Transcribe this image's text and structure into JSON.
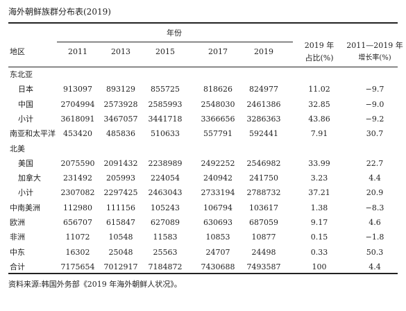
{
  "title": "海外朝鲜族群分布表(2019)",
  "header": {
    "region": "地区",
    "years_label": "年份",
    "years": [
      "2011",
      "2013",
      "2015",
      "2017",
      "2019"
    ],
    "share": [
      "2019 年",
      "占比(%)"
    ],
    "growth": [
      "2011—2019 年",
      "增长率(%)"
    ]
  },
  "rows": [
    {
      "label": "东北亚",
      "rows": [
        {
          "label": "日本",
          "values": [
            "913097",
            "893129",
            "855725",
            "818626",
            "824977",
            "11.02",
            "−9.7"
          ]
        },
        {
          "label": "中国",
          "values": [
            "2704994",
            "2573928",
            "2585993",
            "2548030",
            "2461386",
            "32.85",
            "−9.0"
          ]
        },
        {
          "label": "小计",
          "values": [
            "3618091",
            "3467057",
            "3441718",
            "3366656",
            "3286363",
            "43.86",
            "−9.2"
          ]
        }
      ]
    },
    {
      "label": "南亚和太平洋",
      "values": [
        "453420",
        "485836",
        "510633",
        "557791",
        "592441",
        "7.91",
        "30.7"
      ]
    },
    {
      "label": "北美",
      "rows": [
        {
          "label": "美国",
          "values": [
            "2075590",
            "2091432",
            "2238989",
            "2492252",
            "2546982",
            "33.99",
            "22.7"
          ]
        },
        {
          "label": "加拿大",
          "values": [
            "231492",
            "205993",
            "224054",
            "240942",
            "241750",
            "3.23",
            "4.4"
          ]
        },
        {
          "label": "小计",
          "values": [
            "2307082",
            "2297425",
            "2463043",
            "2733194",
            "2788732",
            "37.21",
            "20.9"
          ]
        }
      ]
    },
    {
      "label": "中南美洲",
      "values": [
        "112980",
        "111156",
        "105243",
        "106794",
        "103617",
        "1.38",
        "−8.3"
      ]
    },
    {
      "label": "欧洲",
      "values": [
        "656707",
        "615847",
        "627089",
        "630693",
        "687059",
        "9.17",
        "4.6"
      ]
    },
    {
      "label": "非洲",
      "values": [
        "11072",
        "10548",
        "11583",
        "10853",
        "10877",
        "0.15",
        "−1.8"
      ]
    },
    {
      "label": "中东",
      "values": [
        "16302",
        "25048",
        "25563",
        "24707",
        "24498",
        "0.33",
        "50.3"
      ]
    },
    {
      "label": "合计",
      "values": [
        "7175654",
        "7012917",
        "7184872",
        "7430688",
        "7493587",
        "100",
        "4.4"
      ]
    }
  ],
  "source": "资料来源:韩国外务部《2019 年海外朝鲜人状况》。"
}
